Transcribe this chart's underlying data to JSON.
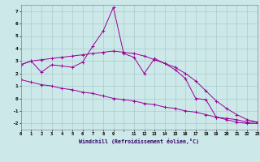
{
  "xlabel": "Windchill (Refroidissement éolien,°C)",
  "ylim": [
    -2.5,
    7.5
  ],
  "xlim": [
    0,
    23
  ],
  "background_color": "#cce8e8",
  "grid_color": "#aacccc",
  "line_color": "#990099",
  "series1_x": [
    0,
    1,
    2,
    3,
    4,
    5,
    6,
    7,
    8,
    9,
    10,
    11,
    12,
    13,
    14,
    15,
    16,
    17,
    18,
    19,
    20,
    21,
    22,
    23
  ],
  "series1_y": [
    2.7,
    3.0,
    2.1,
    2.7,
    2.6,
    2.5,
    2.9,
    4.2,
    5.4,
    7.3,
    3.6,
    3.3,
    2.0,
    3.2,
    2.8,
    2.3,
    1.6,
    0.0,
    -0.1,
    -1.5,
    -1.7,
    -1.9,
    -2.0,
    -2.0
  ],
  "series2_x": [
    0,
    1,
    2,
    3,
    4,
    5,
    6,
    7,
    8,
    9,
    10,
    11,
    12,
    13,
    14,
    15,
    16,
    17,
    18,
    19,
    20,
    21,
    22,
    23
  ],
  "series2_y": [
    2.7,
    3.0,
    3.1,
    3.2,
    3.3,
    3.4,
    3.5,
    3.6,
    3.7,
    3.8,
    3.7,
    3.6,
    3.4,
    3.1,
    2.8,
    2.5,
    2.0,
    1.4,
    0.6,
    -0.2,
    -0.8,
    -1.3,
    -1.7,
    -1.9
  ],
  "series3_x": [
    0,
    1,
    2,
    3,
    4,
    5,
    6,
    7,
    8,
    9,
    10,
    11,
    12,
    13,
    14,
    15,
    16,
    17,
    18,
    19,
    20,
    21,
    22,
    23
  ],
  "series3_y": [
    1.5,
    1.3,
    1.1,
    1.0,
    0.8,
    0.7,
    0.5,
    0.4,
    0.2,
    0.0,
    -0.1,
    -0.2,
    -0.4,
    -0.5,
    -0.7,
    -0.8,
    -1.0,
    -1.1,
    -1.3,
    -1.5,
    -1.6,
    -1.7,
    -1.9,
    -1.9
  ],
  "x_tick_labels": [
    "0",
    "1",
    "2",
    "3",
    "4",
    "5",
    "6",
    "7",
    "8",
    "9",
    "",
    "11",
    "12",
    "13",
    "14",
    "15",
    "16",
    "17",
    "18",
    "19",
    "20",
    "21",
    "22",
    "23"
  ],
  "y_ticks": [
    -2,
    -1,
    0,
    1,
    2,
    3,
    4,
    5,
    6,
    7
  ]
}
